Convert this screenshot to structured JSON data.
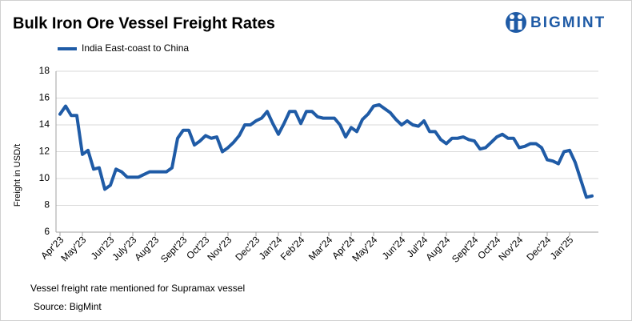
{
  "chart_data": {
    "type": "line",
    "title": "Bulk Iron Ore Vessel Freight Rates",
    "brand": "BIGMINT",
    "ylabel": "Freight  in USD/t",
    "note": "Vessel freight rate mentioned for Supramax vessel",
    "source": "Source:  BigMint",
    "categories": [
      "Apr'23",
      null,
      null,
      null,
      "May'23",
      null,
      null,
      null,
      null,
      "Jun'23",
      null,
      null,
      null,
      "July'23",
      null,
      null,
      null,
      "Aug'23",
      null,
      null,
      null,
      null,
      "Sept'23",
      null,
      null,
      null,
      "Oct'23",
      null,
      null,
      null,
      "Nov'23",
      null,
      null,
      null,
      null,
      "Dec'23",
      null,
      null,
      null,
      "Jan'24",
      null,
      null,
      null,
      "Feb'24",
      null,
      null,
      null,
      null,
      "Mar'24",
      null,
      null,
      null,
      "Apr'24",
      null,
      null,
      null,
      "May'24",
      null,
      null,
      null,
      null,
      "Jun'24",
      null,
      null,
      null,
      "Jul'24",
      null,
      null,
      null,
      "Aug'24",
      null,
      null,
      null,
      null,
      "Sept'24",
      null,
      null,
      null,
      "Oct'24",
      null,
      null,
      null,
      "Nov'24",
      null,
      null,
      null,
      null,
      "Dec'24",
      null,
      null,
      null,
      "Jan'25",
      null,
      null,
      null,
      null
    ],
    "series": [
      {
        "name": "India East-coast to China",
        "color": "#1f5ba6",
        "values": [
          14.8,
          15.4,
          14.7,
          14.7,
          11.8,
          12.1,
          10.7,
          10.8,
          9.2,
          9.5,
          10.7,
          10.5,
          10.1,
          10.1,
          10.1,
          10.3,
          10.5,
          10.5,
          10.5,
          10.5,
          10.8,
          13.0,
          13.6,
          13.6,
          12.5,
          12.8,
          13.2,
          13.0,
          13.1,
          12.0,
          12.3,
          12.7,
          13.2,
          14.0,
          14.0,
          14.3,
          14.5,
          15.0,
          14.1,
          13.3,
          14.1,
          15.0,
          15.0,
          14.1,
          15.0,
          15.0,
          14.6,
          14.5,
          14.5,
          14.5,
          14.0,
          13.1,
          13.8,
          13.5,
          14.4,
          14.8,
          15.4,
          15.5,
          15.2,
          14.9,
          14.4,
          14.0,
          14.3,
          14.0,
          13.9,
          14.3,
          13.5,
          13.5,
          12.9,
          12.6,
          13.0,
          13.0,
          13.1,
          12.9,
          12.8,
          12.2,
          12.3,
          12.7,
          13.1,
          13.3,
          13.0,
          13.0,
          12.3,
          12.4,
          12.6,
          12.6,
          12.3,
          11.4,
          11.3,
          11.1,
          12.0,
          12.1,
          11.2,
          9.9,
          8.6,
          8.7
        ]
      }
    ],
    "ylim": [
      6,
      18
    ],
    "yticks": [
      6,
      8,
      10,
      12,
      14,
      16,
      18
    ],
    "grid": true,
    "legend": "top-left"
  }
}
